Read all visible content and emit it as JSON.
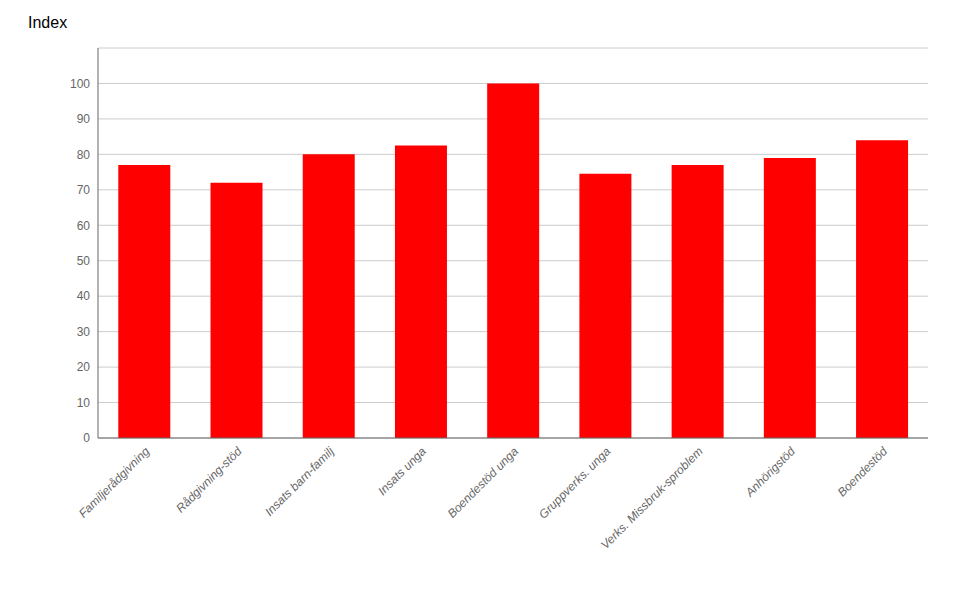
{
  "chart_data": {
    "type": "bar",
    "annotations": [
      "Index"
    ],
    "categories": [
      "Familjerådgivning",
      "Rådgivning-stöd",
      "Insats barn-familj",
      "Insats unga",
      "Boendestöd unga",
      "Gruppverks. unga",
      "Verks. Missbruk-sproblem",
      "Anhörigstöd",
      "Boendestöd"
    ],
    "values": [
      77,
      72,
      80,
      82.5,
      100,
      74.5,
      77,
      79,
      84
    ],
    "color": "#FF0000",
    "ylim": [
      0,
      110
    ],
    "yticks": [
      0,
      10,
      20,
      30,
      40,
      50,
      60,
      70,
      80,
      90,
      100
    ],
    "grid": true
  }
}
